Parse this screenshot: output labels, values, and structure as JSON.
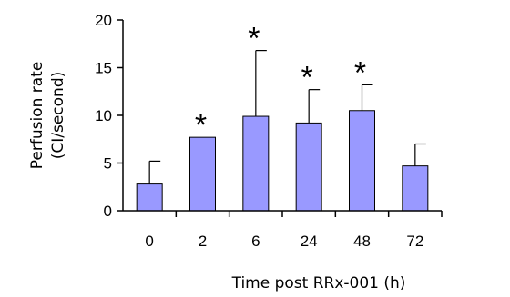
{
  "chart_data": {
    "type": "bar",
    "categories": [
      "0",
      "2",
      "6",
      "24",
      "48",
      "72"
    ],
    "values": [
      2.8,
      7.7,
      9.9,
      9.2,
      10.5,
      4.7
    ],
    "error_upper": [
      5.2,
      7.7,
      16.8,
      12.7,
      13.2,
      7.0
    ],
    "significance": [
      "",
      "*",
      "*",
      "*",
      "*",
      ""
    ],
    "xlabel": "Time post RRx-001 (h)",
    "ylabel": [
      "Perfusion rate",
      "(CI/second)"
    ],
    "ylim": [
      0,
      20
    ],
    "yticks": [
      "0",
      "5",
      "10",
      "15",
      "20"
    ],
    "grid": false,
    "bar_color": "#9999ff"
  }
}
